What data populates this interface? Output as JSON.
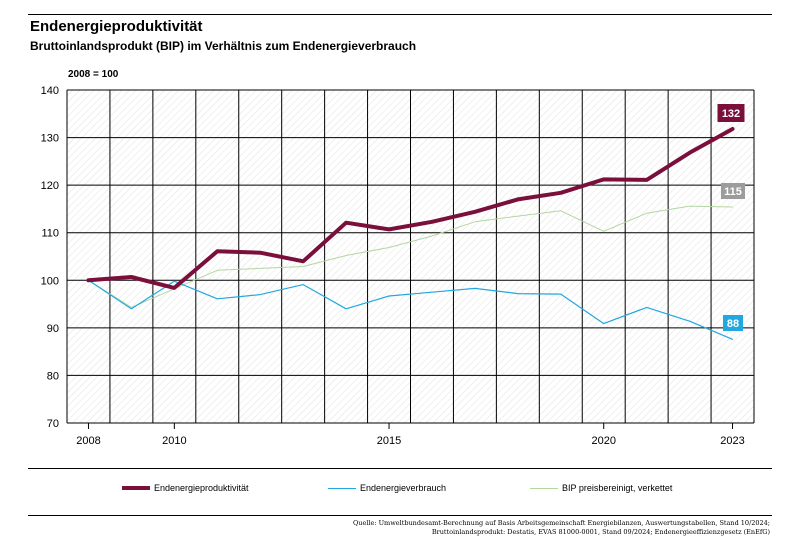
{
  "header": {
    "title": "Endenergieproduktivität",
    "subtitle": "Bruttoinlandsprodukt (BIP) im Verhältnis zum Endenergieverbrauch",
    "unit_note": "2008 = 100"
  },
  "chart_data": {
    "type": "line",
    "title": "Endenergieproduktivität",
    "subtitle": "Bruttoinlandsprodukt (BIP) im Verhältnis zum Endenergieverbrauch",
    "ylabel": "2008 = 100",
    "xlabel": "",
    "x": [
      2008,
      2009,
      2010,
      2011,
      2012,
      2013,
      2014,
      2015,
      2016,
      2017,
      2018,
      2019,
      2020,
      2021,
      2022,
      2023
    ],
    "xlim": [
      2007.5,
      2023.5
    ],
    "ylim": [
      70,
      140
    ],
    "yticks": [
      70,
      80,
      90,
      100,
      110,
      120,
      130,
      140
    ],
    "xtick_labels": [
      "2008",
      "2010",
      "2015",
      "2020",
      "2023"
    ],
    "grid": true,
    "series": [
      {
        "name": "Endenergieproduktivität",
        "color": "#7a0f3c",
        "values": [
          100,
          100.7,
          98.4,
          106.1,
          105.8,
          104,
          112.1,
          110.7,
          112.3,
          114.4,
          117,
          118.4,
          121.2,
          121.1,
          126.8,
          131.8
        ],
        "end_label": "132"
      },
      {
        "name": "Endenergieverbrauch",
        "color": "#22a8e0",
        "values": [
          100,
          94,
          99.8,
          96.1,
          97,
          99.1,
          94,
          96.7,
          97.5,
          98.3,
          97.2,
          97.1,
          90.9,
          94.3,
          91.4,
          87.6
        ],
        "end_label": "88"
      },
      {
        "name": "BIP preisbereinigt, verkettet",
        "color": "#b3d6a3",
        "values": [
          100,
          94.3,
          98.2,
          102.1,
          102.5,
          102.9,
          105.2,
          106.9,
          109.3,
          112.3,
          113.5,
          114.6,
          110.3,
          114.1,
          115.6,
          115.4
        ],
        "end_label": "115"
      }
    ]
  },
  "source": {
    "line1": "Quelle: Umweltbundesamt-Berechnung auf Basis Arbeitsgemeinschaft Energiebilanzen, Auswertungstabellen, Stand 10/2024;",
    "line2": "Bruttoinlandsprodukt: Destatis, EVAS 81000-0001, Stand 09/2024; Endenergieeffizienzgesetz (EnEfG)"
  },
  "colors": {
    "label_gray": "#9c9c9c",
    "hatch": "#e2e2e2"
  }
}
